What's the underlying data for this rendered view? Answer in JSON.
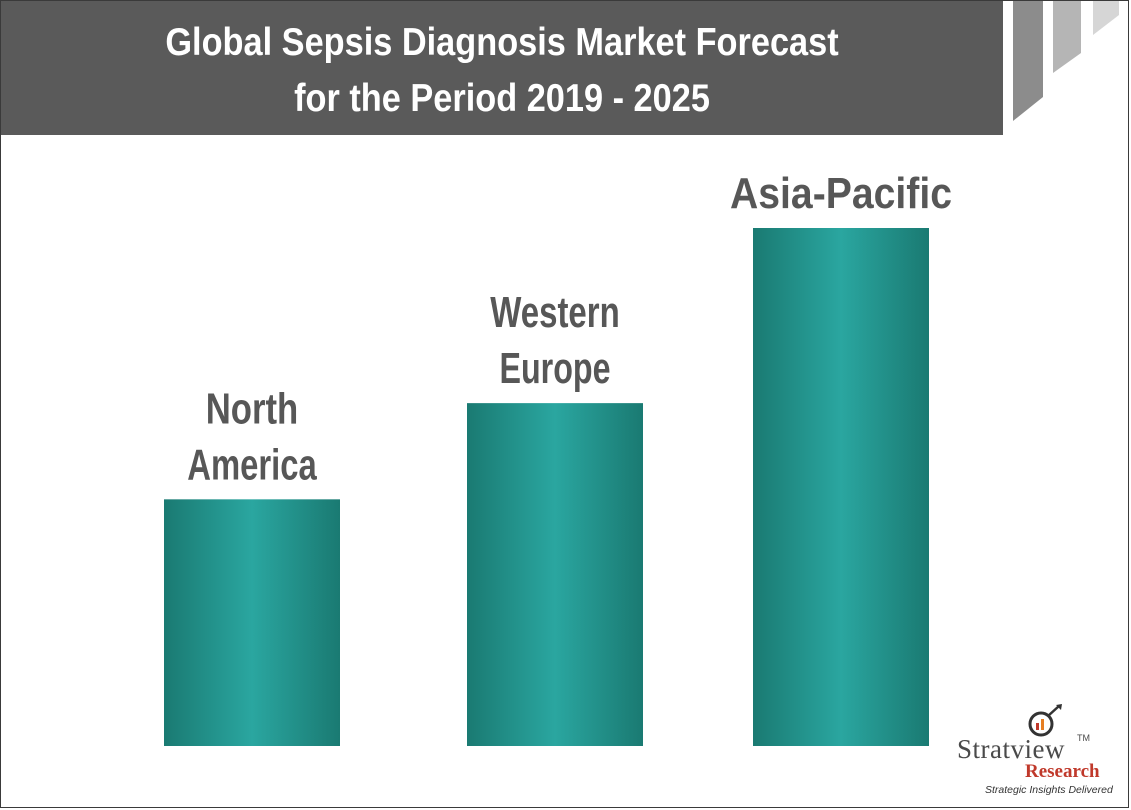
{
  "title": {
    "line1": "Global Sepsis Diagnosis Market Forecast",
    "line2": "for the Period 2019 - 2025"
  },
  "chart_data": {
    "type": "bar",
    "title": "Global Sepsis Diagnosis Market Forecast for the Period 2019 - 2025",
    "categories": [
      "North America",
      "Western Europe",
      "Asia-Pacific"
    ],
    "label_lines": [
      [
        "North",
        "America"
      ],
      [
        "Western",
        "Europe"
      ],
      [
        "Asia-Pacific"
      ]
    ],
    "values": [
      1.0,
      1.39,
      2.1
    ],
    "value_scale": "relative (no axis shown)",
    "ylim": [
      0,
      2.1
    ],
    "grid": false,
    "legend": "none",
    "bar_colors": {
      "edge": "#1a7a72",
      "center": "#2aa6a0"
    }
  },
  "logo": {
    "name": "Stratview",
    "trademark": "TM",
    "sub": "Research",
    "tagline": "Strategic Insights Delivered"
  },
  "colors": {
    "banner": "#5a5a5a",
    "label_text": "#575757",
    "accent_red": "#c0392b"
  }
}
